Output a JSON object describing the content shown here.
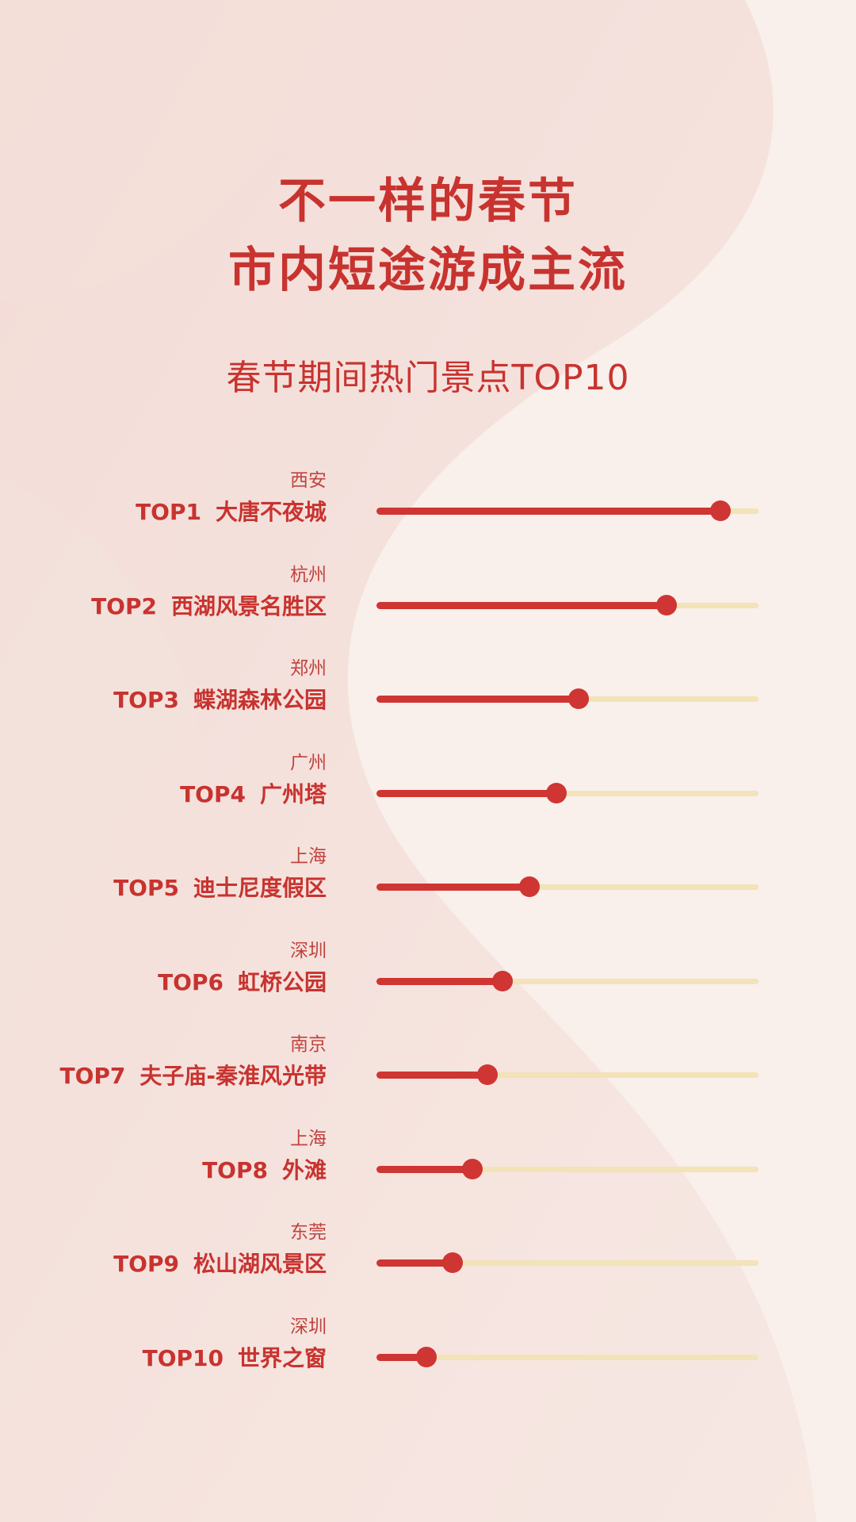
{
  "title_line1": "不一样的春节",
  "title_line2": "市内短途游成主流",
  "subtitle": "春节期间热门景点TOP10",
  "colors": {
    "accent": "#c8332f",
    "bar": "#cf3532",
    "track": "#f2e3b8",
    "background": "#f6ebe7"
  },
  "chart_data": {
    "type": "bar",
    "orientation": "horizontal",
    "title": "春节期间热门景点TOP10",
    "xlim": [
      0,
      100
    ],
    "grid": false,
    "items": [
      {
        "city": "西安",
        "rank": "TOP1",
        "name": "大唐不夜城",
        "value": 90
      },
      {
        "city": "杭州",
        "rank": "TOP2",
        "name": "西湖风景名胜区",
        "value": 76
      },
      {
        "city": "郑州",
        "rank": "TOP3",
        "name": "蝶湖森林公园",
        "value": 53
      },
      {
        "city": "广州",
        "rank": "TOP4",
        "name": "广州塔",
        "value": 47
      },
      {
        "city": "上海",
        "rank": "TOP5",
        "name": "迪士尼度假区",
        "value": 40
      },
      {
        "city": "深圳",
        "rank": "TOP6",
        "name": "虹桥公园",
        "value": 33
      },
      {
        "city": "南京",
        "rank": "TOP7",
        "name": "夫子庙-秦淮风光带",
        "value": 29
      },
      {
        "city": "上海",
        "rank": "TOP8",
        "name": "外滩",
        "value": 25
      },
      {
        "city": "东莞",
        "rank": "TOP9",
        "name": "松山湖风景区",
        "value": 20
      },
      {
        "city": "深圳",
        "rank": "TOP10",
        "name": "世界之窗",
        "value": 13
      }
    ]
  }
}
